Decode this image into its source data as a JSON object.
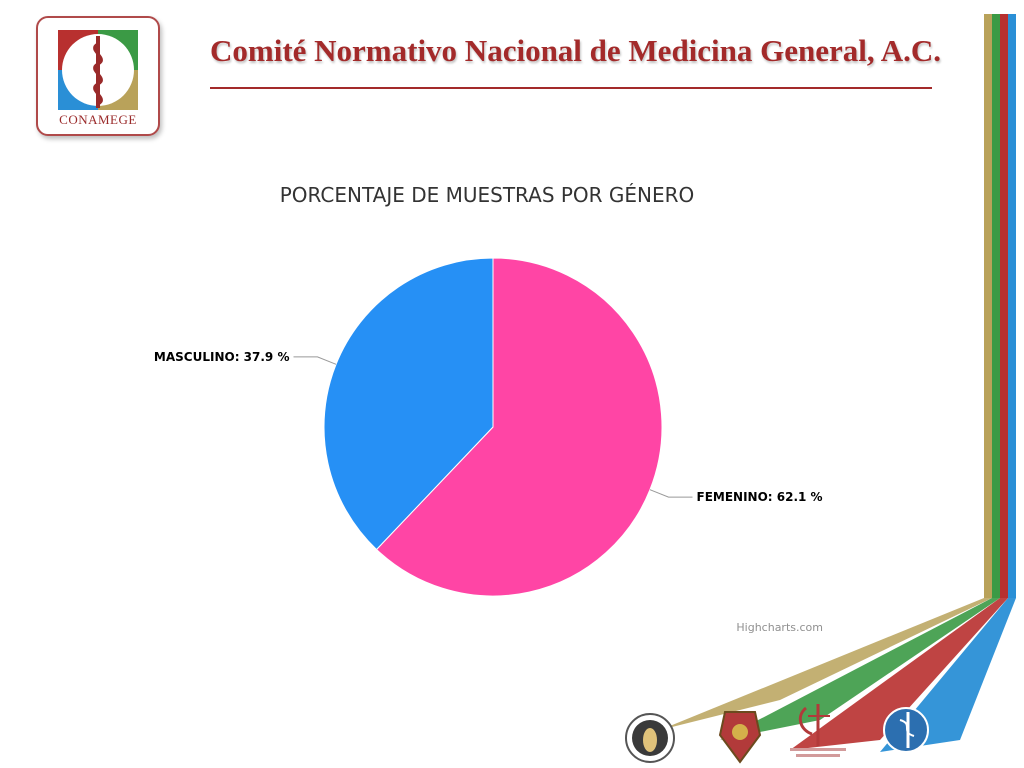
{
  "header": {
    "title": "Comité Normativo Nacional de Medicina General, A.C.",
    "logo_text": "CONAMEGE"
  },
  "colors": {
    "brand_red": "#a32a2a",
    "stripe_gold": "#b9a25a",
    "stripe_green": "#3b9a45",
    "stripe_red": "#b8302f",
    "stripe_blue": "#2a8fd6"
  },
  "chart_data": {
    "type": "pie",
    "title": "PORCENTAJE DE MUESTRAS POR GÉNERO",
    "slices": [
      {
        "name": "FEMENINO",
        "value": 62.1,
        "label": "FEMENINO: 62.1 %",
        "color": "#ff45a5"
      },
      {
        "name": "MASCULINO",
        "value": 37.9,
        "label": "MASCULINO: 37.9 %",
        "color": "#2690f5"
      }
    ],
    "credits": "Highcharts.com"
  },
  "footer_seals": [
    {
      "name": "academia-seal-icon",
      "color": "#c9a94a"
    },
    {
      "name": "crest-seal-icon",
      "color": "#b23a3a"
    },
    {
      "name": "consejo-certificacion-seal-icon",
      "color": "#b23a3a"
    },
    {
      "name": "blue-1967-seal-icon",
      "color": "#2c6fb0"
    }
  ]
}
